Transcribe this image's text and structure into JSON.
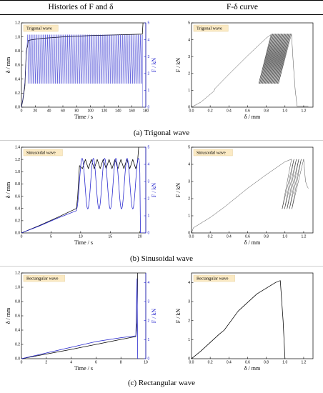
{
  "header": {
    "left": "Histories of F and δ",
    "right": "F-δ curve"
  },
  "captions": {
    "a": "(a) Trigonal wave",
    "b": "(b) Sinusoidal wave",
    "c": "(c) Rectangular wave"
  },
  "colors": {
    "delta": "#000000",
    "force": "#1f1fcc",
    "badge_bg": "#fbeac4",
    "badge_border": "#e0c890"
  },
  "chart_data": [
    {
      "id": "a-history",
      "type": "line",
      "title": "Trigonal wave",
      "xlabel": "Time / s",
      "ylabel": "δ / mm",
      "y2label": "F / kN",
      "xlim": [
        0,
        180
      ],
      "ylim": [
        0,
        1.2
      ],
      "y2lim": [
        0,
        5
      ],
      "xticks": [
        "0",
        "20",
        "40",
        "60",
        "80",
        "100",
        "120",
        "140",
        "160",
        "180"
      ],
      "yticks": [
        "0.0",
        "0.2",
        "0.4",
        "0.6",
        "0.8",
        "1.0",
        "1.2"
      ],
      "y2ticks": [
        "0",
        "1",
        "2",
        "3",
        "4",
        "5"
      ],
      "series": [
        {
          "axis": "left",
          "color": "#000000",
          "x": [
            0,
            2,
            5,
            7,
            9,
            10,
            15,
            30,
            60,
            100,
            140,
            175,
            176
          ],
          "y": [
            0,
            0.1,
            0.3,
            0.8,
            0.88,
            0.95,
            0.96,
            0.98,
            1.0,
            1.02,
            1.03,
            1.04,
            1.2
          ]
        },
        {
          "axis": "right",
          "color": "#1f1fcc",
          "x": [
            0,
            2,
            5,
            7,
            9
          ],
          "y": [
            0,
            0.5,
            1.5,
            3.0,
            4.2
          ],
          "oscillation": {
            "x_start": 9,
            "x_end": 175,
            "period": 3.2,
            "y_low": 1.4,
            "y_high": 4.3
          },
          "tail_x": [
            175,
            175.5,
            176
          ],
          "tail_y": [
            4.3,
            0,
            0
          ]
        }
      ]
    },
    {
      "id": "a-fd",
      "type": "line",
      "title": "Trigonal wave",
      "xlabel": "δ / mm",
      "ylabel": "F / kN",
      "xlim": [
        0,
        1.3
      ],
      "ylim": [
        0,
        5
      ],
      "xticks": [
        "0.0",
        "0.2",
        "0.4",
        "0.6",
        "0.8",
        "1.0",
        "1.2"
      ],
      "yticks": [
        "0",
        "1",
        "2",
        "3",
        "4",
        "5"
      ],
      "series": [
        {
          "axis": "left",
          "color": "#000000",
          "x": [
            0,
            0.1,
            0.24,
            0.25,
            0.4,
            0.6,
            0.8,
            0.85
          ],
          "y": [
            0,
            0.3,
            0.95,
            1.1,
            1.95,
            3.05,
            4.1,
            4.3
          ],
          "loops": {
            "x_start": 0.85,
            "x_end": 1.07,
            "count": 22,
            "y_low": 1.4,
            "y_high": 4.35,
            "unload_dx": 0.13
          },
          "tail_x": [
            1.07,
            1.09,
            1.11,
            1.13,
            1.25
          ],
          "tail_y": [
            4.35,
            2.5,
            1.0,
            0.05,
            0.05
          ]
        }
      ]
    },
    {
      "id": "b-history",
      "type": "line",
      "title": "Sinusoidal wave",
      "xlabel": "Time / s",
      "ylabel": "δ / mm",
      "y2label": "F / kN",
      "xlim": [
        0,
        21
      ],
      "ylim": [
        0,
        1.4
      ],
      "y2lim": [
        0,
        5
      ],
      "xticks": [
        "0",
        "5",
        "10",
        "15",
        "20"
      ],
      "yticks": [
        "0.0",
        "0.2",
        "0.4",
        "0.6",
        "0.8",
        "1.0",
        "1.2",
        "1.4"
      ],
      "y2ticks": [
        "0",
        "1",
        "2",
        "3",
        "4",
        "5"
      ],
      "series": [
        {
          "axis": "left",
          "color": "#000000",
          "x": [
            0,
            3,
            6,
            9.3,
            9.5,
            9.8,
            10.3,
            10.8,
            11.3,
            11.8,
            12.3,
            12.8,
            13.3,
            13.8,
            14.3,
            14.8,
            15.3,
            15.8,
            16.3,
            16.8,
            17.3,
            17.8,
            18.3,
            18.8,
            19.3,
            19.6,
            19.8
          ],
          "y": [
            0,
            0.12,
            0.25,
            0.4,
            0.6,
            1.1,
            1.05,
            1.2,
            1.05,
            1.2,
            1.05,
            1.2,
            1.05,
            1.2,
            1.05,
            1.2,
            1.05,
            1.2,
            1.05,
            1.2,
            1.05,
            1.2,
            1.05,
            1.2,
            1.05,
            1.15,
            1.4
          ]
        },
        {
          "axis": "right",
          "color": "#1f1fcc",
          "x": [
            0,
            3,
            6,
            9.3
          ],
          "y": [
            0,
            0.4,
            0.85,
            1.3
          ],
          "sine": {
            "x_start": 9.3,
            "x_end": 20.0,
            "period": 1.9,
            "y_low": 1.4,
            "y_high": 4.35
          },
          "tail_x": [
            20.0,
            20.1,
            21.0
          ],
          "tail_y": [
            3.5,
            0,
            0
          ]
        }
      ]
    },
    {
      "id": "b-fd",
      "type": "line",
      "title": "Sinusoidal wave",
      "xlabel": "δ / mm",
      "ylabel": "F / kN",
      "xlim": [
        0,
        1.3
      ],
      "ylim": [
        0,
        5
      ],
      "xticks": [
        "0.0",
        "0.2",
        "0.4",
        "0.6",
        "0.8",
        "1.0",
        "1.2"
      ],
      "yticks": [
        "0",
        "1",
        "2",
        "3",
        "4",
        "5"
      ],
      "series": [
        {
          "axis": "left",
          "color": "#000000",
          "x": [
            0,
            0.02,
            0.2,
            0.35,
            0.6,
            0.8,
            1.0,
            1.07
          ],
          "y": [
            0,
            0.3,
            0.9,
            1.5,
            2.6,
            3.4,
            4.15,
            4.3
          ],
          "loops": {
            "x_start": 1.07,
            "x_end": 1.2,
            "count": 5,
            "y_low": 1.4,
            "y_high": 4.3,
            "unload_dx": 0.1
          },
          "tail_x": [
            1.2,
            1.22,
            1.24,
            1.25
          ],
          "tail_y": [
            4.3,
            3.0,
            2.7,
            2.6
          ]
        }
      ]
    },
    {
      "id": "c-history",
      "type": "line",
      "title": "Rectangular wave",
      "xlabel": "Time / s",
      "ylabel": "δ / mm",
      "y2label": "F / kN",
      "xlim": [
        0,
        10
      ],
      "ylim": [
        0,
        1.2
      ],
      "y2lim": [
        0,
        4.5
      ],
      "xticks": [
        "0",
        "2",
        "4",
        "6",
        "8",
        "10"
      ],
      "yticks": [
        "0.0",
        "0.2",
        "0.4",
        "0.6",
        "0.8",
        "1.0",
        "1.2"
      ],
      "y2ticks": [
        "0",
        "1",
        "2",
        "3",
        "4"
      ],
      "series": [
        {
          "axis": "left",
          "color": "#000000",
          "x": [
            0,
            2,
            4,
            6,
            8,
            9.2,
            9.3,
            9.35
          ],
          "y": [
            0,
            0.065,
            0.13,
            0.2,
            0.27,
            0.31,
            0.5,
            1.2
          ]
        },
        {
          "axis": "right",
          "color": "#1f1fcc",
          "x": [
            0,
            2,
            4,
            6,
            8,
            9.2,
            9.3,
            9.35,
            9.4,
            9.5
          ],
          "y": [
            0,
            0.3,
            0.6,
            0.9,
            1.1,
            1.2,
            4.2,
            0,
            0,
            0
          ]
        }
      ]
    },
    {
      "id": "c-fd",
      "type": "line",
      "title": "Rectangular wave",
      "xlabel": "δ / mm",
      "ylabel": "F / kN",
      "xlim": [
        0,
        1.3
      ],
      "ylim": [
        0,
        4.5
      ],
      "xticks": [
        "0.0",
        "0.2",
        "0.4",
        "0.6",
        "0.8",
        "1.0",
        "1.2"
      ],
      "yticks": [
        "0",
        "1",
        "2",
        "3",
        "4"
      ],
      "series": [
        {
          "axis": "left",
          "color": "#000000",
          "x": [
            0,
            0.1,
            0.3,
            0.35,
            0.5,
            0.7,
            0.9,
            0.95,
            0.98,
            1.0
          ],
          "y": [
            0,
            0.4,
            1.3,
            1.5,
            2.5,
            3.4,
            4.0,
            4.1,
            2.0,
            0
          ]
        }
      ]
    }
  ]
}
